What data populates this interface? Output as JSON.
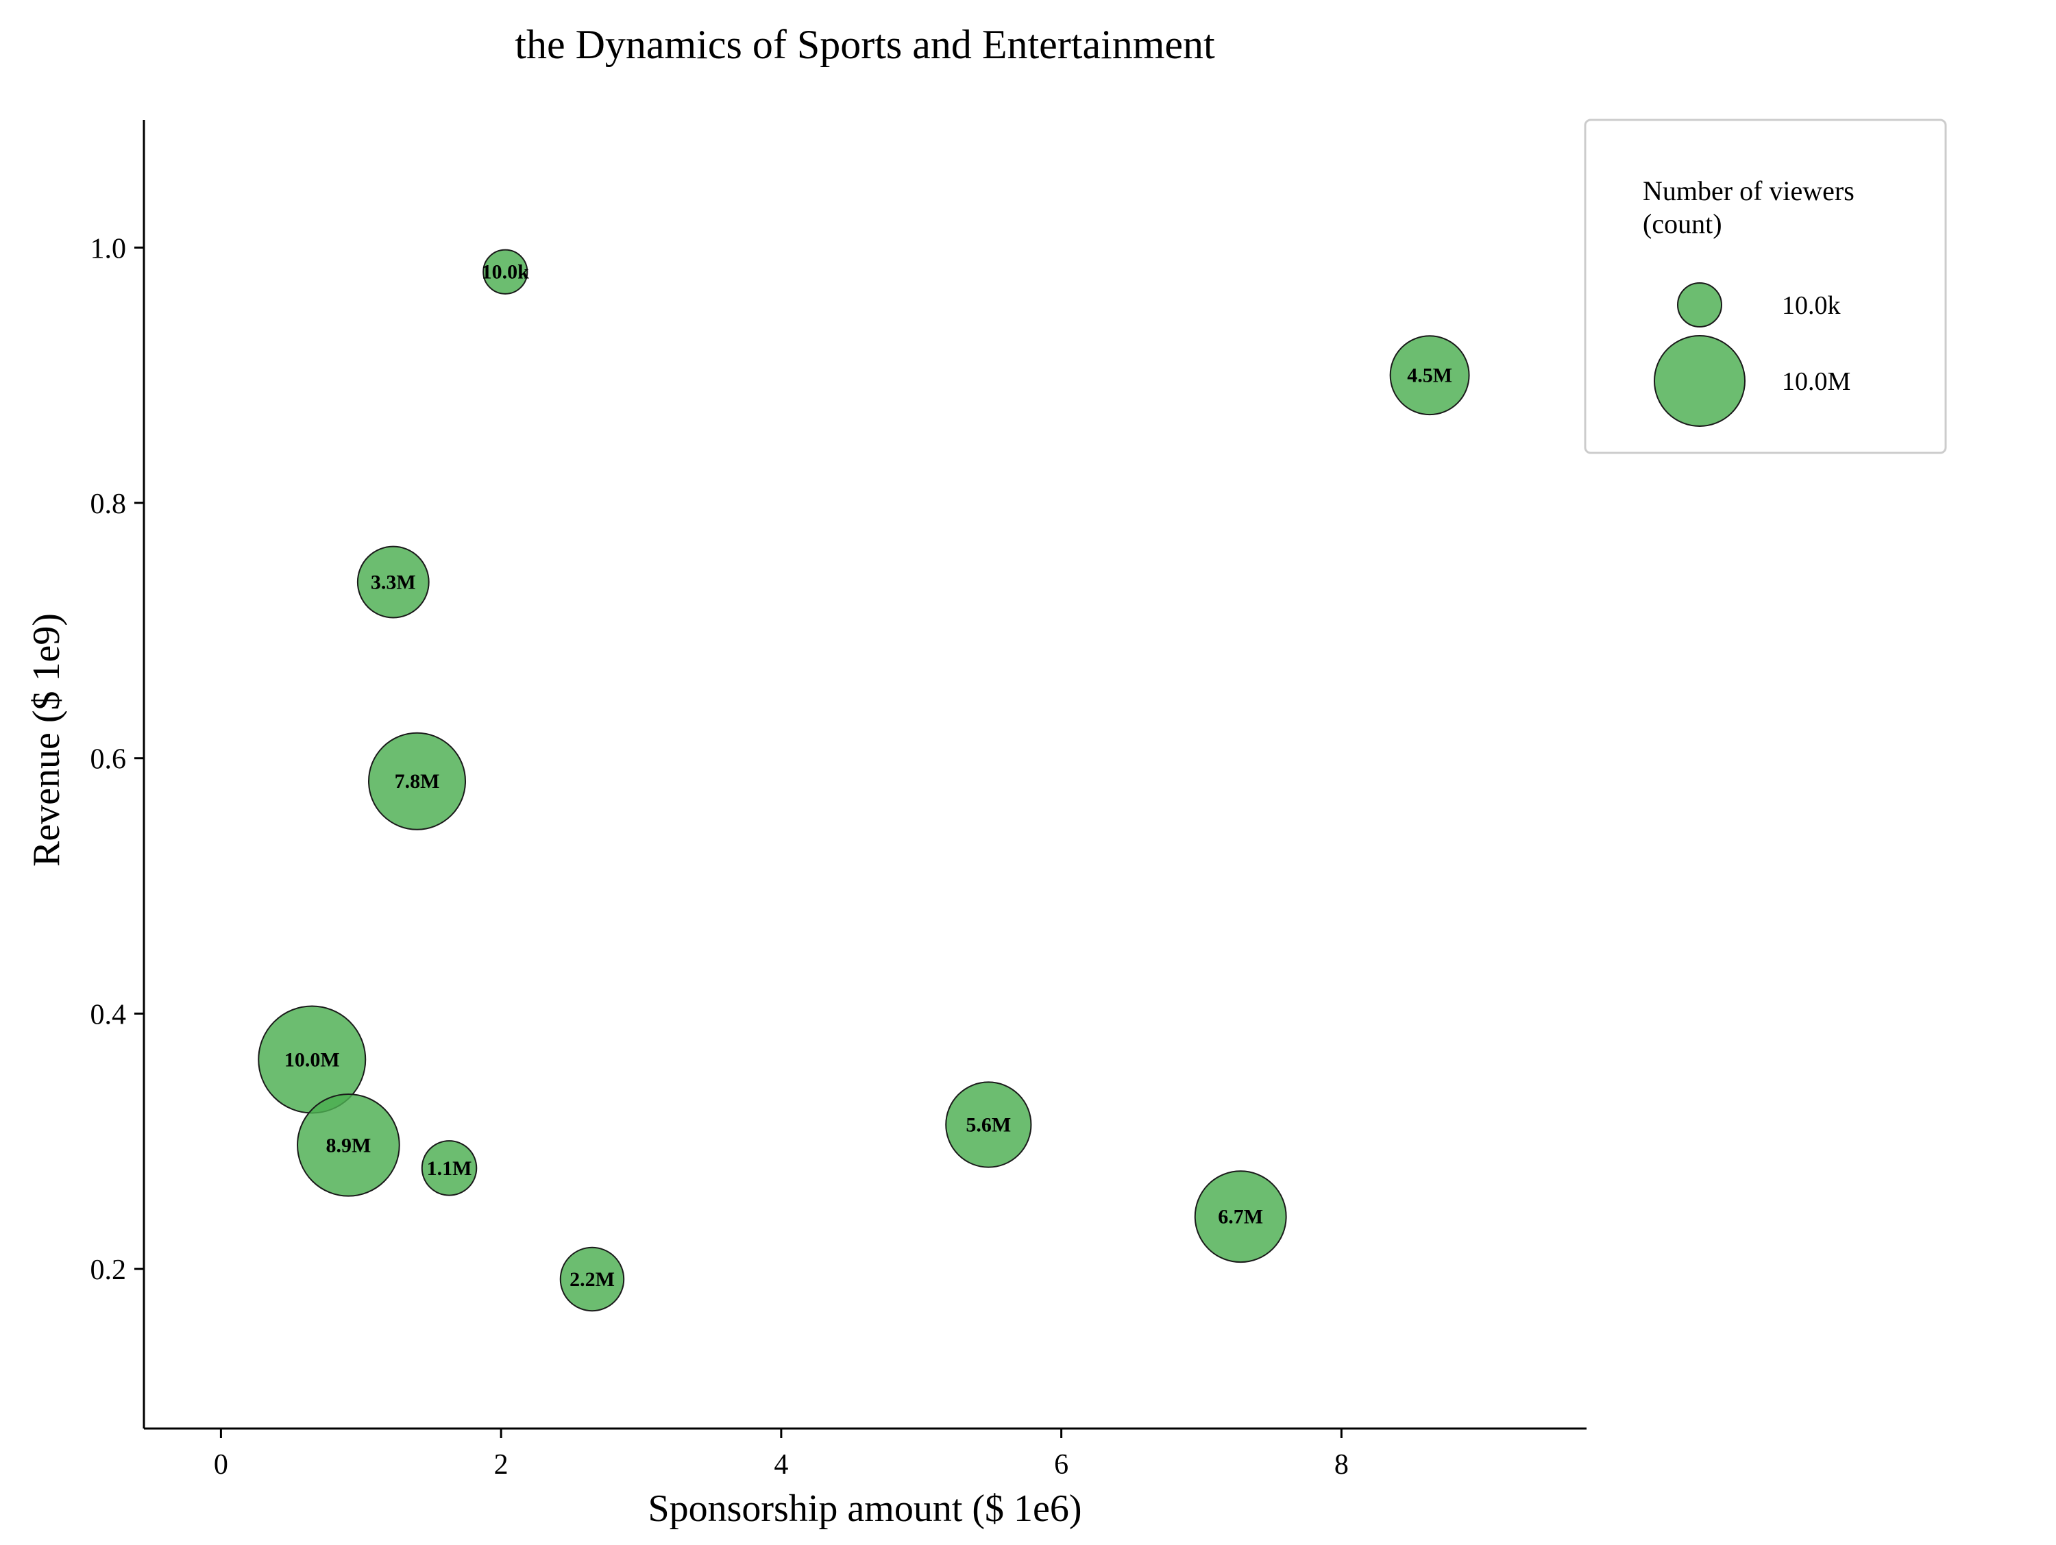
{
  "chart_data": {
    "type": "scatter",
    "title": "the Dynamics of Sports and Entertainment",
    "xlabel": "Sponsorship amount ($ 1e6)",
    "ylabel": "Revenue ($ 1e9)",
    "xlim": [
      -0.55,
      9.75
    ],
    "ylim": [
      0.075,
      1.1
    ],
    "xticks": [
      0,
      2,
      4,
      6,
      8
    ],
    "xtick_labels": [
      "0",
      "2",
      "4",
      "6",
      "8"
    ],
    "yticks": [
      0.2,
      0.4,
      0.6,
      0.8,
      1.0
    ],
    "ytick_labels": [
      "0.2",
      "0.4",
      "0.6",
      "0.8",
      "1.0"
    ],
    "grid": false,
    "colors": {
      "bubble_fill": "#4caf50",
      "bubble_edge": "#1a1a1a"
    },
    "series": [
      {
        "points": [
          {
            "x": 2.03,
            "y": 0.981,
            "size": 10000,
            "label": "10.0k"
          },
          {
            "x": 8.63,
            "y": 0.9,
            "size": 4500000,
            "label": "4.5M"
          },
          {
            "x": 1.23,
            "y": 0.738,
            "size": 3300000,
            "label": "3.3M"
          },
          {
            "x": 1.4,
            "y": 0.582,
            "size": 7800000,
            "label": "7.8M"
          },
          {
            "x": 0.65,
            "y": 0.364,
            "size": 10000000,
            "label": "10.0M"
          },
          {
            "x": 0.91,
            "y": 0.297,
            "size": 8900000,
            "label": "8.9M"
          },
          {
            "x": 1.63,
            "y": 0.279,
            "size": 1100000,
            "label": "1.1M"
          },
          {
            "x": 2.65,
            "y": 0.192,
            "size": 2200000,
            "label": "2.2M"
          },
          {
            "x": 5.48,
            "y": 0.313,
            "size": 5600000,
            "label": "5.6M"
          },
          {
            "x": 7.28,
            "y": 0.241,
            "size": 6700000,
            "label": "6.7M"
          }
        ]
      }
    ],
    "legend": {
      "title_lines": [
        "Number of viewers",
        "(count)"
      ],
      "placement": "top-right, outside plot",
      "entries": [
        {
          "size": 10000,
          "label": "10.0k"
        },
        {
          "size": 10000000,
          "label": "10.0M"
        }
      ]
    }
  }
}
